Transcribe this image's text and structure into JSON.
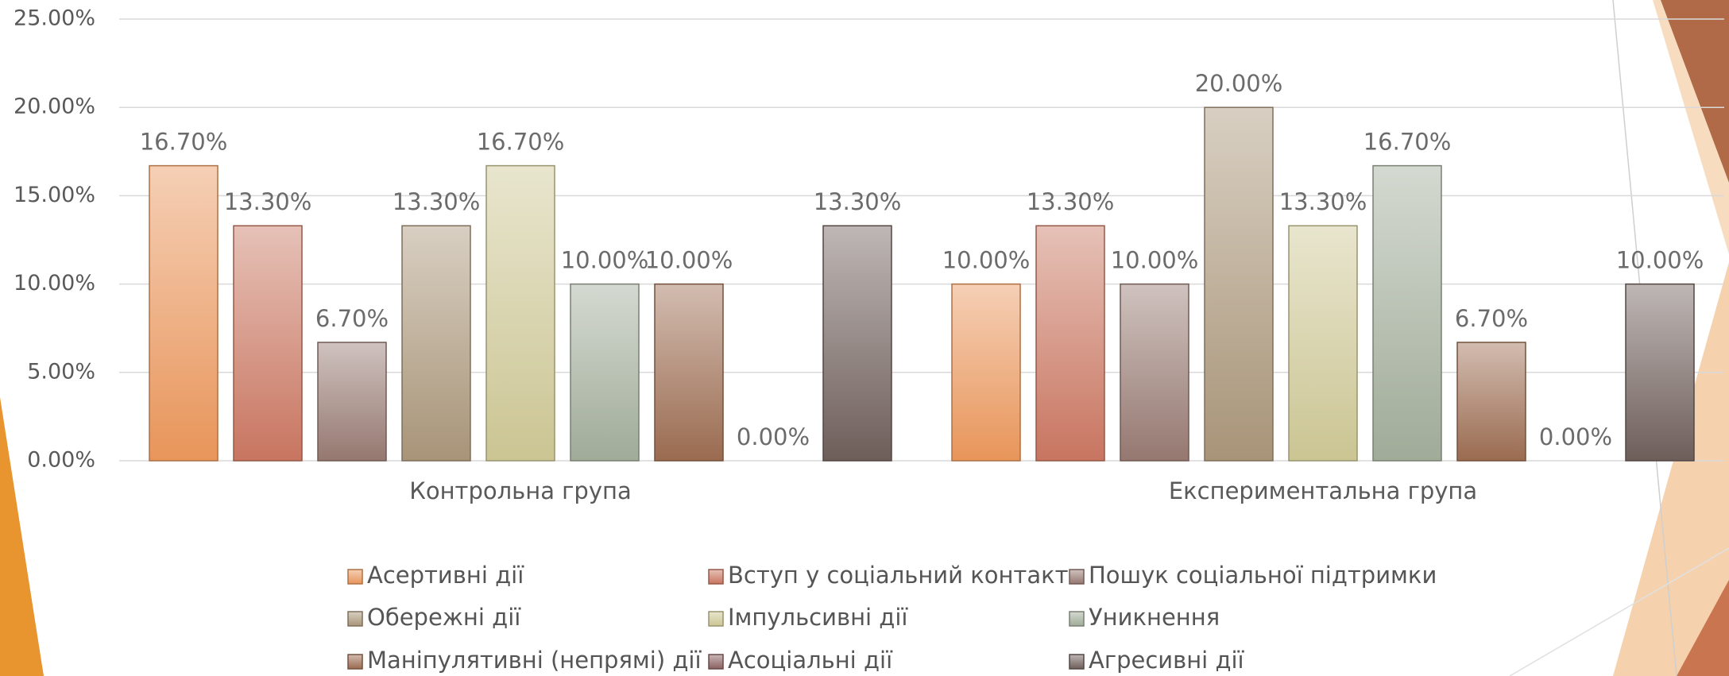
{
  "chart_data": {
    "type": "bar",
    "categories": [
      "Контрольна група",
      "Експериментальна група"
    ],
    "series": [
      {
        "name": "Асертивні дії",
        "color": "#e8955a",
        "values": [
          16.7,
          10.0
        ],
        "value_labels": [
          "16.70%",
          "10.00%"
        ]
      },
      {
        "name": "Вступ у соціальний контакт",
        "color": "#c87560",
        "values": [
          13.3,
          13.3
        ],
        "value_labels": [
          "13.30%",
          "13.30%"
        ]
      },
      {
        "name": "Пошук соціальної підтримки",
        "color": "#957870",
        "values": [
          6.7,
          10.0
        ],
        "value_labels": [
          "6.70%",
          "10.00%"
        ]
      },
      {
        "name": "Обережні дії",
        "color": "#a89478",
        "values": [
          13.3,
          20.0
        ],
        "value_labels": [
          "13.30%",
          "20.00%"
        ]
      },
      {
        "name": "Імпульсивні дії",
        "color": "#cbc593",
        "values": [
          16.7,
          13.3
        ],
        "value_labels": [
          "16.70%",
          "13.30%"
        ]
      },
      {
        "name": "Уникнення",
        "color": "#a0ab98",
        "values": [
          10.0,
          16.7
        ],
        "value_labels": [
          "10.00%",
          "16.70%"
        ]
      },
      {
        "name": "Маніпулятивні (непрямі) дії",
        "color": "#9a6b50",
        "values": [
          10.0,
          6.7
        ],
        "value_labels": [
          "10.00%",
          "6.70%"
        ]
      },
      {
        "name": "Асоціальні дії",
        "color": "#8a6060",
        "values": [
          0.0,
          0.0
        ],
        "value_labels": [
          "0.00%",
          "0.00%"
        ]
      },
      {
        "name": "Агресивні дії",
        "color": "#6e5e5a",
        "values": [
          13.3,
          10.0
        ],
        "value_labels": [
          "13.30%",
          "10.00%"
        ]
      }
    ],
    "ylim": [
      0,
      25
    ],
    "yticks": [
      {
        "value": 0,
        "label": "0.00%"
      },
      {
        "value": 5,
        "label": "5.00%"
      },
      {
        "value": 10,
        "label": "10.00%"
      },
      {
        "value": 15,
        "label": "15.00%"
      },
      {
        "value": 20,
        "label": "20.00%"
      },
      {
        "value": 25,
        "label": "25.00%"
      }
    ],
    "grid": true
  }
}
